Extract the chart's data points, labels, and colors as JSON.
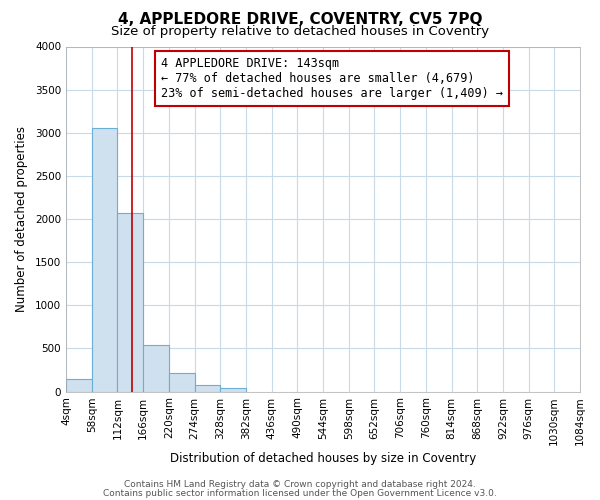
{
  "title": "4, APPLEDORE DRIVE, COVENTRY, CV5 7PQ",
  "subtitle": "Size of property relative to detached houses in Coventry",
  "xlabel": "Distribution of detached houses by size in Coventry",
  "ylabel": "Number of detached properties",
  "bin_edges": [
    4,
    58,
    112,
    166,
    220,
    274,
    328,
    382,
    436,
    490,
    544,
    598,
    652,
    706,
    760,
    814,
    868,
    922,
    976,
    1030,
    1084
  ],
  "bin_labels": [
    "4sqm",
    "58sqm",
    "112sqm",
    "166sqm",
    "220sqm",
    "274sqm",
    "328sqm",
    "382sqm",
    "436sqm",
    "490sqm",
    "544sqm",
    "598sqm",
    "652sqm",
    "706sqm",
    "760sqm",
    "814sqm",
    "868sqm",
    "922sqm",
    "976sqm",
    "1030sqm",
    "1084sqm"
  ],
  "bar_heights": [
    150,
    3050,
    2075,
    540,
    210,
    75,
    45,
    0,
    0,
    0,
    0,
    0,
    0,
    0,
    0,
    0,
    0,
    0,
    0,
    0
  ],
  "bar_color": "#cfe0ef",
  "bar_edge_color": "#6aafd4",
  "property_line_x": 143,
  "property_line_color": "#c00000",
  "annotation_text": "4 APPLEDORE DRIVE: 143sqm\n← 77% of detached houses are smaller (4,679)\n23% of semi-detached houses are larger (1,409) →",
  "annotation_box_color": "#ffffff",
  "annotation_box_edge_color": "#c00000",
  "ylim": [
    0,
    4000
  ],
  "yticks": [
    0,
    500,
    1000,
    1500,
    2000,
    2500,
    3000,
    3500,
    4000
  ],
  "footer1": "Contains HM Land Registry data © Crown copyright and database right 2024.",
  "footer2": "Contains public sector information licensed under the Open Government Licence v3.0.",
  "bg_color": "#ffffff",
  "grid_color": "#c8d9e8",
  "title_fontsize": 11,
  "subtitle_fontsize": 9.5,
  "label_fontsize": 8.5,
  "tick_fontsize": 7.5,
  "annotation_fontsize": 8.5,
  "footer_fontsize": 6.5
}
